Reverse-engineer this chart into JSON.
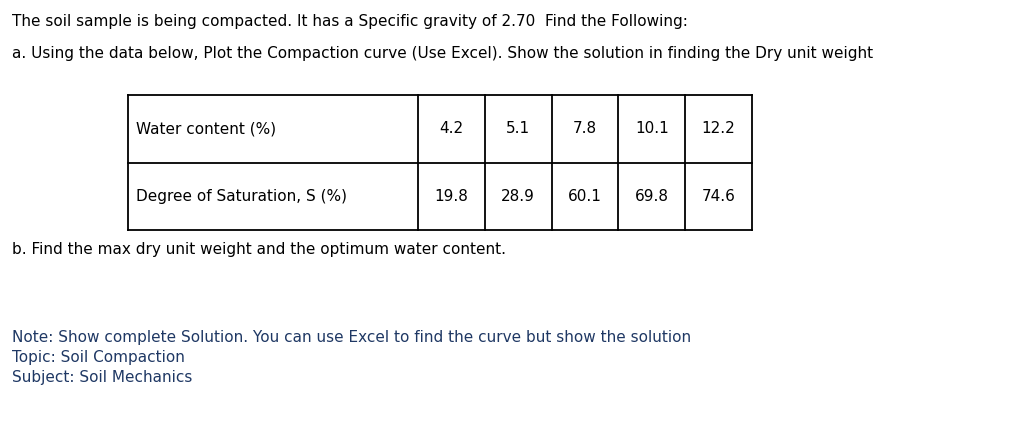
{
  "title_line": "The soil sample is being compacted. It has a Specific gravity of 2.70  Find the Following:",
  "part_a": "a. Using the data below, Plot the Compaction curve (Use Excel). Show the solution in finding the Dry unit weight",
  "part_b": "b. Find the max dry unit weight and the optimum water content.",
  "note_line1": "Note: Show complete Solution. You can use Excel to find the curve but show the solution",
  "note_line2": "Topic: Soil Compaction",
  "note_line3": "Subject: Soil Mechanics",
  "table_row1_label": "Water content (%)",
  "table_row1_values": [
    "4.2",
    "5.1",
    "7.8",
    "10.1",
    "12.2"
  ],
  "table_row2_label": "Degree of Saturation, S (%)",
  "table_row2_values": [
    "19.8",
    "28.9",
    "60.1",
    "69.8",
    "74.6"
  ],
  "background_color": "#ffffff",
  "text_color": "#000000",
  "note_color": "#1f3864",
  "font_size": 11.0,
  "table_font_size": 11.0
}
